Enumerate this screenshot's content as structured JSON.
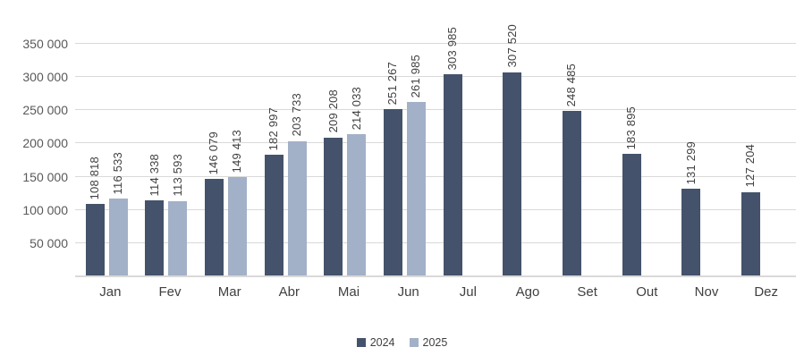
{
  "chart_data": {
    "type": "bar",
    "title": "",
    "xlabel": "",
    "ylabel": "",
    "categories": [
      "Jan",
      "Fev",
      "Mar",
      "Abr",
      "Mai",
      "Jun",
      "Jul",
      "Ago",
      "Set",
      "Out",
      "Nov",
      "Dez"
    ],
    "series": [
      {
        "name": "2024",
        "color": "#44536B",
        "values": [
          108818,
          114338,
          146079,
          182997,
          209208,
          251267,
          303985,
          307520,
          248485,
          183895,
          131299,
          127204
        ],
        "labels": [
          "108 818",
          "114 338",
          "146 079",
          "182 997",
          "209 208",
          "251 267",
          "303 985",
          "307 520",
          "248 485",
          "183 895",
          "131 299",
          "127 204"
        ]
      },
      {
        "name": "2025",
        "color": "#A2B1C8",
        "values": [
          116533,
          113593,
          149413,
          203733,
          214033,
          261985,
          null,
          null,
          null,
          null,
          null,
          null
        ],
        "labels": [
          "116 533",
          "113 593",
          "149 413",
          "203 733",
          "214 033",
          "261 985",
          null,
          null,
          null,
          null,
          null,
          null
        ]
      }
    ],
    "y_axis": {
      "min": 0,
      "max": 350000,
      "step": 50000,
      "tick_labels": [
        "50 000",
        "100 000",
        "150 000",
        "200 000",
        "250 000",
        "300 000",
        "350 000"
      ]
    },
    "grid": true,
    "legend_position": "bottom",
    "data_labels_rotated": true
  },
  "legend": {
    "items": [
      {
        "label": "2024",
        "color": "#44536B"
      },
      {
        "label": "2025",
        "color": "#A2B1C8"
      }
    ]
  },
  "colors": {
    "series_2024": "#44536B",
    "series_2025": "#A2B1C8",
    "gridline": "#D9D9D9",
    "axis_line": "#D9D9D9",
    "data_label_text": "#404040",
    "axis_text": "#595959",
    "background": "#FFFFFF"
  }
}
